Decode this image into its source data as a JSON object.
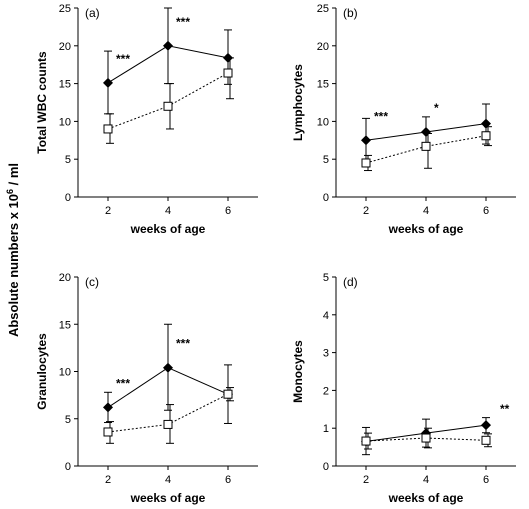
{
  "figure": {
    "shared_ylabel_main": "Absolute numbers x 10",
    "shared_ylabel_sup": "6",
    "shared_ylabel_tail": " / ml"
  },
  "chart_data": [
    {
      "type": "line",
      "panel_label": "(a)",
      "ylabel": "Total WBC counts",
      "xlabel": "weeks of age",
      "x": [
        2,
        4,
        6
      ],
      "xlim": [
        1,
        7
      ],
      "xticks": [
        2,
        4,
        6
      ],
      "ylim": [
        0,
        25
      ],
      "yticks": [
        0,
        5,
        10,
        15,
        20,
        25
      ],
      "series": [
        {
          "marker": "filled-diamond",
          "line": "solid",
          "color": "#000000",
          "values": [
            15.1,
            20.0,
            18.4
          ],
          "err_high": [
            19.3,
            25.0,
            22.1
          ],
          "err_low": [
            11.0,
            15.0,
            14.9
          ]
        },
        {
          "marker": "open-square",
          "line": "dotted",
          "color": "#000000",
          "values": [
            9.0,
            12.0,
            16.4
          ],
          "err_high": [
            11.0,
            15.0,
            18.4
          ],
          "err_low": [
            7.1,
            9.0,
            13.0
          ]
        }
      ],
      "significance": [
        {
          "x": 2,
          "label": "***"
        },
        {
          "x": 4,
          "label": "***"
        }
      ]
    },
    {
      "type": "line",
      "panel_label": "(b)",
      "ylabel": "Lymphocytes",
      "xlabel": "weeks of age",
      "x": [
        2,
        4,
        6
      ],
      "xlim": [
        1,
        7
      ],
      "xticks": [
        2,
        4,
        6
      ],
      "ylim": [
        0,
        25
      ],
      "yticks": [
        0,
        5,
        10,
        15,
        20,
        25
      ],
      "series": [
        {
          "marker": "filled-diamond",
          "line": "solid",
          "color": "#000000",
          "values": [
            7.5,
            8.6,
            9.7
          ],
          "err_high": [
            10.4,
            10.6,
            12.3
          ],
          "err_low": [
            4.9,
            6.5,
            7.0
          ]
        },
        {
          "marker": "open-square",
          "line": "dotted",
          "color": "#000000",
          "values": [
            4.5,
            6.7,
            8.1
          ],
          "err_high": [
            5.5,
            8.4,
            9.3
          ],
          "err_low": [
            3.5,
            3.8,
            6.8
          ]
        }
      ],
      "significance": [
        {
          "x": 2,
          "label": "***"
        },
        {
          "x": 4,
          "label": "*"
        }
      ]
    },
    {
      "type": "line",
      "panel_label": "(c)",
      "ylabel": "Granulocytes",
      "xlabel": "weeks of age",
      "x": [
        2,
        4,
        6
      ],
      "xlim": [
        1,
        7
      ],
      "xticks": [
        2,
        4,
        6
      ],
      "ylim": [
        0,
        20
      ],
      "yticks": [
        0,
        5,
        10,
        15,
        20
      ],
      "series": [
        {
          "marker": "filled-diamond",
          "line": "solid",
          "color": "#000000",
          "values": [
            6.2,
            10.4,
            7.6
          ],
          "err_high": [
            7.8,
            15.0,
            10.7
          ],
          "err_low": [
            4.6,
            5.9,
            4.5
          ]
        },
        {
          "marker": "open-square",
          "line": "dotted",
          "color": "#000000",
          "values": [
            3.6,
            4.4,
            7.6
          ],
          "err_high": [
            4.7,
            6.5,
            8.3
          ],
          "err_low": [
            2.4,
            2.4,
            6.9
          ]
        }
      ],
      "significance": [
        {
          "x": 2,
          "label": "***"
        },
        {
          "x": 4,
          "label": "***"
        }
      ]
    },
    {
      "type": "line",
      "panel_label": "(d)",
      "ylabel": "Monocytes",
      "xlabel": "weeks of age",
      "x": [
        2,
        4,
        6
      ],
      "xlim": [
        1,
        7
      ],
      "xticks": [
        2,
        4,
        6
      ],
      "ylim": [
        0,
        5
      ],
      "yticks": [
        0,
        1,
        2,
        3,
        4,
        5
      ],
      "series": [
        {
          "marker": "filled-diamond",
          "line": "solid",
          "color": "#000000",
          "values": [
            0.65,
            0.87,
            1.08
          ],
          "err_high": [
            1.02,
            1.24,
            1.28
          ],
          "err_low": [
            0.3,
            0.5,
            0.88
          ]
        },
        {
          "marker": "open-square",
          "line": "dotted",
          "color": "#000000",
          "values": [
            0.66,
            0.74,
            0.68
          ],
          "err_high": [
            0.87,
            1.0,
            0.85
          ],
          "err_low": [
            0.45,
            0.48,
            0.51
          ]
        }
      ],
      "significance": [
        {
          "x": 6,
          "label": "**"
        }
      ]
    }
  ]
}
